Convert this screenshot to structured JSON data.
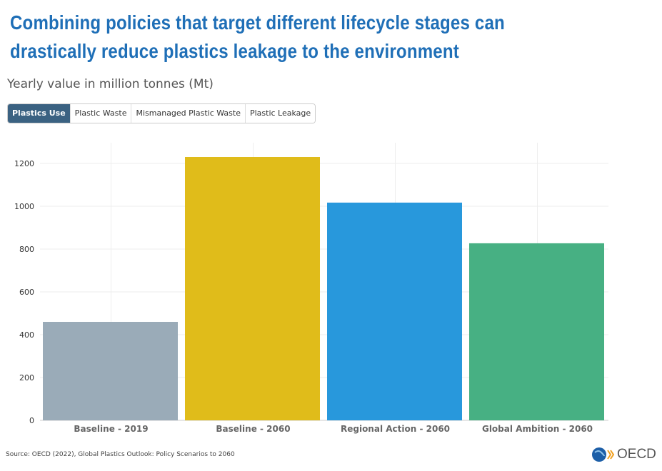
{
  "header": {
    "title": "Combining policies that target different lifecycle stages can drastically reduce plastics leakage to the environment",
    "subtitle": "Yearly value in million tonnes (Mt)"
  },
  "tabs": [
    {
      "label": "Plastics Use",
      "active": true
    },
    {
      "label": "Plastic Waste"
    },
    {
      "label": "Mismanaged Plastic Waste"
    },
    {
      "label": "Plastic Leakage"
    }
  ],
  "chart_data": {
    "type": "bar",
    "categories": [
      "Baseline - 2019",
      "Baseline - 2060",
      "Regional Action - 2060",
      "Global Ambition - 2060"
    ],
    "values": [
      460,
      1230,
      1017,
      827
    ],
    "colors": [
      "#9aabb8",
      "#e0bc1a",
      "#2898dc",
      "#47b083"
    ],
    "ylim": [
      0,
      1300
    ],
    "yticks": [
      0,
      200,
      400,
      600,
      800,
      1000,
      1200
    ],
    "xlabel": "",
    "ylabel": "",
    "grid": true
  },
  "footer": {
    "source": "Source: OECD (2022), Global Plastics Outlook: Policy Scenarios to 2060",
    "logo_text": "OECD"
  }
}
